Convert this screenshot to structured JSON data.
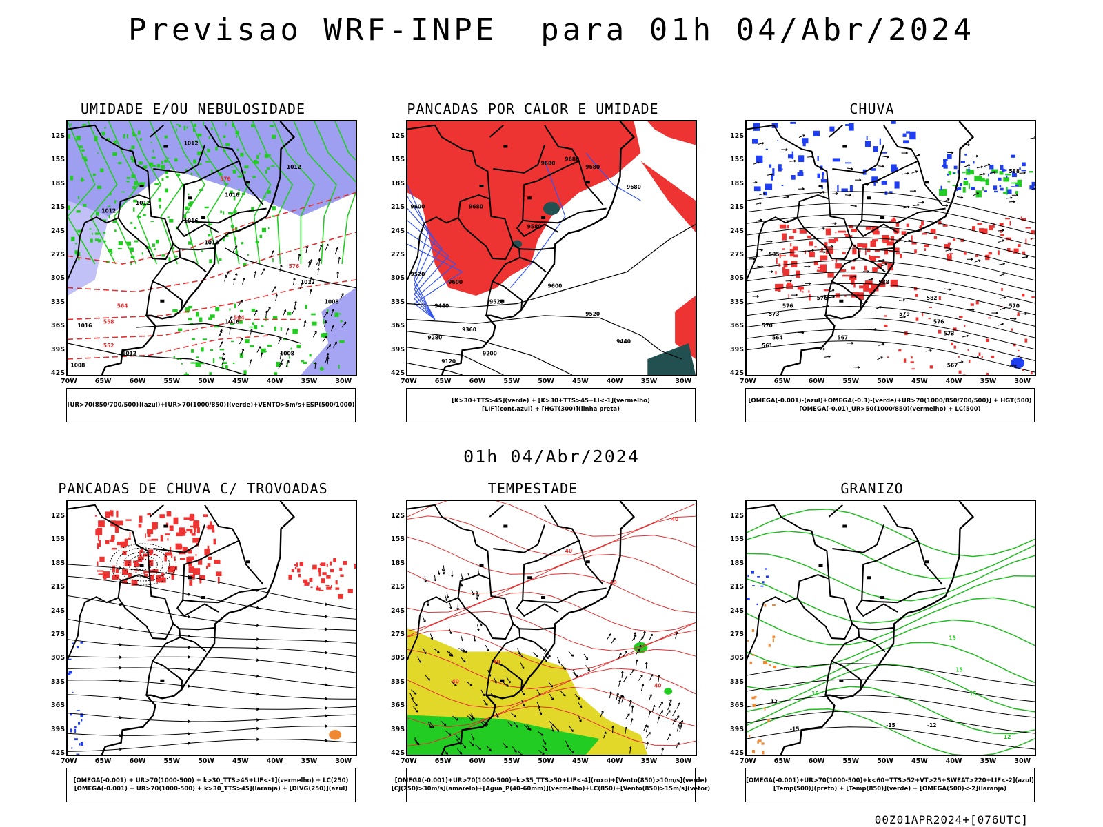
{
  "header": {
    "title": "Previsao WRF-INPE  para 01h 04/Abr/2024",
    "mid_date": "01h 04/Abr/2024",
    "footer_stamp": "00Z01APR2024+[076UTC]"
  },
  "axes": {
    "lat_labels": [
      "12S",
      "15S",
      "18S",
      "21S",
      "24S",
      "27S",
      "30S",
      "33S",
      "36S",
      "39S",
      "42S"
    ],
    "lon_labels": [
      "70W",
      "65W",
      "60W",
      "55W",
      "50W",
      "45W",
      "40W",
      "35W",
      "30W"
    ]
  },
  "panels": [
    {
      "id": "umidade",
      "title": "UMIDADE E/OU NEBULOSIDADE",
      "legend": [
        "[UR>70(850/700/500)](azul)+[UR>70(1000/850)](verde)+VENTO>5m/s+ESP(500/1000)"
      ],
      "contour_labels": [
        {
          "text": "1012",
          "color": "#000",
          "lon": -52,
          "lat": -13
        },
        {
          "text": "1012",
          "color": "#000",
          "lon": -37,
          "lat": -16
        },
        {
          "text": "1016",
          "color": "#000",
          "lon": -46,
          "lat": -19.5
        },
        {
          "text": "1012",
          "color": "#000",
          "lon": -59,
          "lat": -20.5
        },
        {
          "text": "1012",
          "color": "#000",
          "lon": -64,
          "lat": -21.5
        },
        {
          "text": "1016",
          "color": "#000",
          "lon": -52,
          "lat": -22.8
        },
        {
          "text": "1016",
          "color": "#000",
          "lon": -49,
          "lat": -25.5
        },
        {
          "text": "1012",
          "color": "#000",
          "lon": -35,
          "lat": -30.5
        },
        {
          "text": "1008",
          "color": "#000",
          "lon": -31.5,
          "lat": -33
        },
        {
          "text": "1016",
          "color": "#000",
          "lon": -46,
          "lat": -35.5
        },
        {
          "text": "1016",
          "color": "#000",
          "lon": -67.5,
          "lat": -36
        },
        {
          "text": "1012",
          "color": "#000",
          "lon": -61,
          "lat": -39.5
        },
        {
          "text": "1008",
          "color": "#000",
          "lon": -68.5,
          "lat": -41
        },
        {
          "text": "1008",
          "color": "#000",
          "lon": -38,
          "lat": -39.5
        },
        {
          "text": "576",
          "color": "#e03030",
          "lon": -47,
          "lat": -17.5
        },
        {
          "text": "576",
          "color": "#e03030",
          "lon": -37,
          "lat": -28.5
        },
        {
          "text": "564",
          "color": "#e03030",
          "lon": -62,
          "lat": -33.5
        },
        {
          "text": "564",
          "color": "#e03030",
          "lon": -45,
          "lat": -35
        },
        {
          "text": "558",
          "color": "#e03030",
          "lon": -64,
          "lat": -35.5
        },
        {
          "text": "552",
          "color": "#e03030",
          "lon": -64,
          "lat": -38.5
        }
      ]
    },
    {
      "id": "pancadas-calor",
      "title": "PANCADAS POR CALOR E UMIDADE",
      "legend": [
        "[K>30+TTS>45](verde) + [K>30+TTS>45+LI<-1](vermelho)",
        "[LIF](cont.azul) + [HGT(300)](linha preta)"
      ],
      "contour_labels": [
        {
          "text": "9680",
          "color": "#000",
          "lon": -49.5,
          "lat": -15.5
        },
        {
          "text": "9680",
          "color": "#000",
          "lon": -46,
          "lat": -15
        },
        {
          "text": "9680",
          "color": "#000",
          "lon": -43,
          "lat": -16
        },
        {
          "text": "9680",
          "color": "#000",
          "lon": -37,
          "lat": -18.5
        },
        {
          "text": "9680",
          "color": "#000",
          "lon": -60,
          "lat": -21
        },
        {
          "text": "9600",
          "color": "#000",
          "lon": -68.5,
          "lat": -21
        },
        {
          "text": "9580",
          "color": "#000",
          "lon": -51.5,
          "lat": -23.5
        },
        {
          "text": "9600",
          "color": "#000",
          "lon": -48.5,
          "lat": -31
        },
        {
          "text": "9520",
          "color": "#000",
          "lon": -68.5,
          "lat": -29.5
        },
        {
          "text": "9600",
          "color": "#000",
          "lon": -63,
          "lat": -30.5
        },
        {
          "text": "9520",
          "color": "#000",
          "lon": -57,
          "lat": -33
        },
        {
          "text": "9520",
          "color": "#000",
          "lon": -43,
          "lat": -34.5
        },
        {
          "text": "9440",
          "color": "#000",
          "lon": -65,
          "lat": -33.5
        },
        {
          "text": "9360",
          "color": "#000",
          "lon": -61,
          "lat": -36.5
        },
        {
          "text": "9280",
          "color": "#000",
          "lon": -66,
          "lat": -37.5
        },
        {
          "text": "9200",
          "color": "#000",
          "lon": -58,
          "lat": -39.5
        },
        {
          "text": "9120",
          "color": "#000",
          "lon": -64,
          "lat": -40.5
        },
        {
          "text": "9440",
          "color": "#000",
          "lon": -38.5,
          "lat": -38
        }
      ]
    },
    {
      "id": "chuva",
      "title": "CHUVA",
      "legend": [
        "[OMEGA(-0.001)-(azul)+OMEGA(-0.3)-(verde)+UR>70(1000/850/700/500)] + HGT(500)",
        "[OMEGA(-0.01)_UR>50(1000/850)(vermelho) + LC(500)"
      ],
      "contour_labels": [
        {
          "text": "588",
          "color": "#000",
          "lon": -31,
          "lat": -16.5
        },
        {
          "text": "585",
          "color": "#000",
          "lon": -66,
          "lat": -27
        },
        {
          "text": "588",
          "color": "#000",
          "lon": -50,
          "lat": -30.5
        },
        {
          "text": "582",
          "color": "#000",
          "lon": -43,
          "lat": -32.5
        },
        {
          "text": "579",
          "color": "#000",
          "lon": -47,
          "lat": -34.5
        },
        {
          "text": "576",
          "color": "#000",
          "lon": -59,
          "lat": -32.5
        },
        {
          "text": "576",
          "color": "#000",
          "lon": -42,
          "lat": -35.5
        },
        {
          "text": "576",
          "color": "#000",
          "lon": -64,
          "lat": -33.5
        },
        {
          "text": "573",
          "color": "#000",
          "lon": -66,
          "lat": -34.5
        },
        {
          "text": "570",
          "color": "#000",
          "lon": -67,
          "lat": -36
        },
        {
          "text": "570",
          "color": "#000",
          "lon": -31,
          "lat": -33.5
        },
        {
          "text": "573",
          "color": "#000",
          "lon": -40.5,
          "lat": -37
        },
        {
          "text": "567",
          "color": "#000",
          "lon": -56,
          "lat": -37.5
        },
        {
          "text": "564",
          "color": "#000",
          "lon": -65.5,
          "lat": -37.5
        },
        {
          "text": "561",
          "color": "#000",
          "lon": -67,
          "lat": -38.5
        },
        {
          "text": "567",
          "color": "#000",
          "lon": -40,
          "lat": -41
        }
      ]
    },
    {
      "id": "pancadas-trovoadas",
      "title": "PANCADAS DE CHUVA C/ TROVOADAS",
      "legend": [
        "[OMEGA(-0.001) + UR>70(1000-500) + k>30_TTS>45+LIF<-1](vermelho) + LC(250)",
        "[OMEGA(-0.001) + UR>70(1000-500) + k>30_TTS>45](laranja) + [DIVG(250)](azul)"
      ],
      "contour_labels": []
    },
    {
      "id": "tempestade",
      "title": "TEMPESTADE",
      "legend": [
        "[OMEGA(-0.001)+UR>70(1000-500)+k>35_TTS>50+LIF<-4](roxo)+[Vento(850)>10m/s](verde)",
        "[CJ(250)>30m/s](amarelo)+[Agua_P(40-60mm)](vermelho)+LC(850)+[Vento(850)>15m/s](vetor)"
      ],
      "contour_labels": [
        {
          "text": "40",
          "color": "#e03030",
          "lon": -31,
          "lat": -12.5
        },
        {
          "text": "40",
          "color": "#e03030",
          "lon": -46.5,
          "lat": -16.5
        },
        {
          "text": "40",
          "color": "#e03030",
          "lon": -40,
          "lat": -20.5
        },
        {
          "text": "40",
          "color": "#e03030",
          "lon": -57,
          "lat": -30.5
        },
        {
          "text": "40",
          "color": "#e03030",
          "lon": -63,
          "lat": -33
        },
        {
          "text": "40",
          "color": "#e03030",
          "lon": -33.5,
          "lat": -33.5
        }
      ]
    },
    {
      "id": "granizo",
      "title": "GRANIZO",
      "legend": [
        "[OMEGA(-0.001)+UR>70(1000-500)+k<60+TTS>52+VT>25+SWEAT>220+LIF<-2](azul)",
        "[Temp(500)](preto) + [Temp(850)](verde) + [OMEGA(500)<-2](laranja)"
      ],
      "contour_labels": [
        {
          "text": "15",
          "color": "#22bb22",
          "lon": -40,
          "lat": -27.5
        },
        {
          "text": "15",
          "color": "#22bb22",
          "lon": -39,
          "lat": -31.5
        },
        {
          "text": "15",
          "color": "#22bb22",
          "lon": -60,
          "lat": -34.5
        },
        {
          "text": "12",
          "color": "#000",
          "lon": -66,
          "lat": -35.5
        },
        {
          "text": "-15",
          "color": "#000",
          "lon": -63,
          "lat": -39
        },
        {
          "text": "-15",
          "color": "#000",
          "lon": -49,
          "lat": -38.5
        },
        {
          "text": "-12",
          "color": "#000",
          "lon": -43,
          "lat": -38.5
        },
        {
          "text": "15",
          "color": "#22bb22",
          "lon": -37,
          "lat": -34.5
        },
        {
          "text": "12",
          "color": "#22bb22",
          "lon": -32,
          "lat": -40
        }
      ]
    }
  ],
  "colors": {
    "humidity_blue": "#8e8ef0",
    "humidity_green": "#22cc22",
    "heat_red": "#ee3333",
    "dark_teal": "#224f4f",
    "lif_blue": "#3355ee",
    "rain_blue": "#1e3ef0",
    "rain_green": "#22cc22",
    "rain_red": "#ee3333",
    "orange": "#ee8833",
    "jet_yellow": "#e2d82a",
    "wind_green": "#22cc22",
    "contour_red": "#e03030",
    "contour_green": "#22bb22"
  }
}
